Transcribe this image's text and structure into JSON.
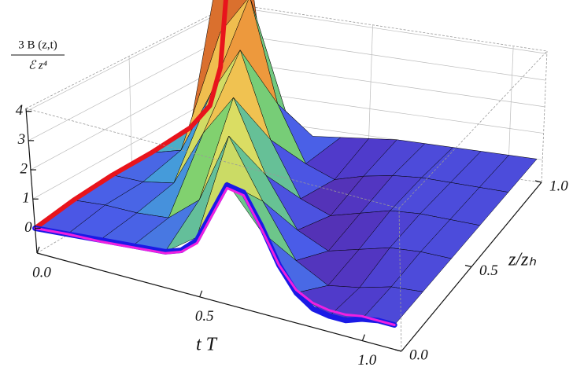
{
  "chart_data": {
    "type": "surface3d",
    "x_label": "t T",
    "y_label": "z/zₕ",
    "z_label": {
      "numerator": "3 B (z,t)",
      "denominator": "ℰ z⁴"
    },
    "t": [
      0,
      0.1,
      0.2,
      0.3,
      0.4,
      0.5,
      0.6,
      0.7,
      0.8,
      0.9,
      1.0,
      1.1
    ],
    "z": [
      0,
      0.2,
      0.4,
      0.6,
      0.8,
      1.0
    ],
    "surface": [
      [
        0,
        0.1,
        0.2,
        0.3,
        0.4,
        1.2,
        3.4,
        2.0,
        0.2,
        -0.3,
        -0.1,
        0
      ],
      [
        0.2,
        0.3,
        0.3,
        0.4,
        1.3,
        3.8,
        1.8,
        0.0,
        -0.6,
        -0.4,
        -0.1,
        0
      ],
      [
        0.3,
        0.3,
        0.5,
        2.5,
        4.0,
        1.5,
        -0.2,
        -0.7,
        -0.4,
        -0.1,
        0,
        0
      ],
      [
        0.3,
        0.6,
        2.8,
        4.6,
        1.6,
        -0.3,
        -0.7,
        -0.4,
        -0.1,
        0,
        0,
        0
      ],
      [
        0.4,
        4.0,
        5.5,
        1.8,
        -0.2,
        -0.6,
        -0.3,
        -0.1,
        0,
        0,
        0,
        0
      ],
      [
        9.0,
        3.0,
        0.5,
        -0.3,
        -0.2,
        -0.1,
        0,
        0,
        0,
        0,
        0,
        0
      ]
    ],
    "tlim": [
      0,
      1.12
    ],
    "zlim": [
      0,
      1
    ],
    "vlim": [
      -0.85,
      4.1
    ],
    "tticks": [
      {
        "value": 0,
        "label": "0.0"
      },
      {
        "value": 0.5,
        "label": "0.5"
      },
      {
        "value": 1,
        "label": "1.0"
      }
    ],
    "zticks": [
      {
        "value": 0,
        "label": "0.0"
      },
      {
        "value": 0.5,
        "label": "0.5"
      },
      {
        "value": 1,
        "label": "1.0"
      }
    ],
    "vticks": [
      0,
      1,
      2,
      3,
      4
    ],
    "grid": true,
    "curves": [
      {
        "color": "#e8141c",
        "along": "z",
        "x": [
          0,
          0.2,
          0.4,
          0.6,
          0.8,
          0.9,
          0.95,
          0.98
        ],
        "values": [
          0,
          0.2,
          0.3,
          0.3,
          0.4,
          0.8,
          2.0,
          6.0
        ]
      },
      {
        "color": "#1a1ae6",
        "along": "t",
        "x": [
          0,
          0.1,
          0.2,
          0.3,
          0.4,
          0.45,
          0.5,
          0.55,
          0.6,
          0.65,
          0.7,
          0.75,
          0.8,
          0.85,
          0.9,
          0.95,
          1.0,
          1.05,
          1.1
        ],
        "values": [
          0,
          0.1,
          0.2,
          0.3,
          0.4,
          0.6,
          1.1,
          2.2,
          3.3,
          3.2,
          2.2,
          1.0,
          0.2,
          -0.2,
          -0.3,
          -0.3,
          -0.1,
          0,
          0
        ]
      },
      {
        "color": "#f020e0",
        "along": "t",
        "x": [
          0,
          0.1,
          0.2,
          0.3,
          0.4,
          0.45,
          0.5,
          0.55,
          0.6,
          0.65,
          0.7,
          0.75,
          0.8,
          0.85,
          0.9,
          0.95,
          1.0,
          1.05,
          1.1
        ],
        "values": [
          0,
          0.1,
          0.15,
          0.25,
          0.35,
          0.55,
          1.0,
          2.1,
          3.2,
          3.1,
          2.1,
          1.0,
          0.3,
          0,
          -0.1,
          -0.1,
          0,
          0,
          0
        ]
      }
    ]
  }
}
